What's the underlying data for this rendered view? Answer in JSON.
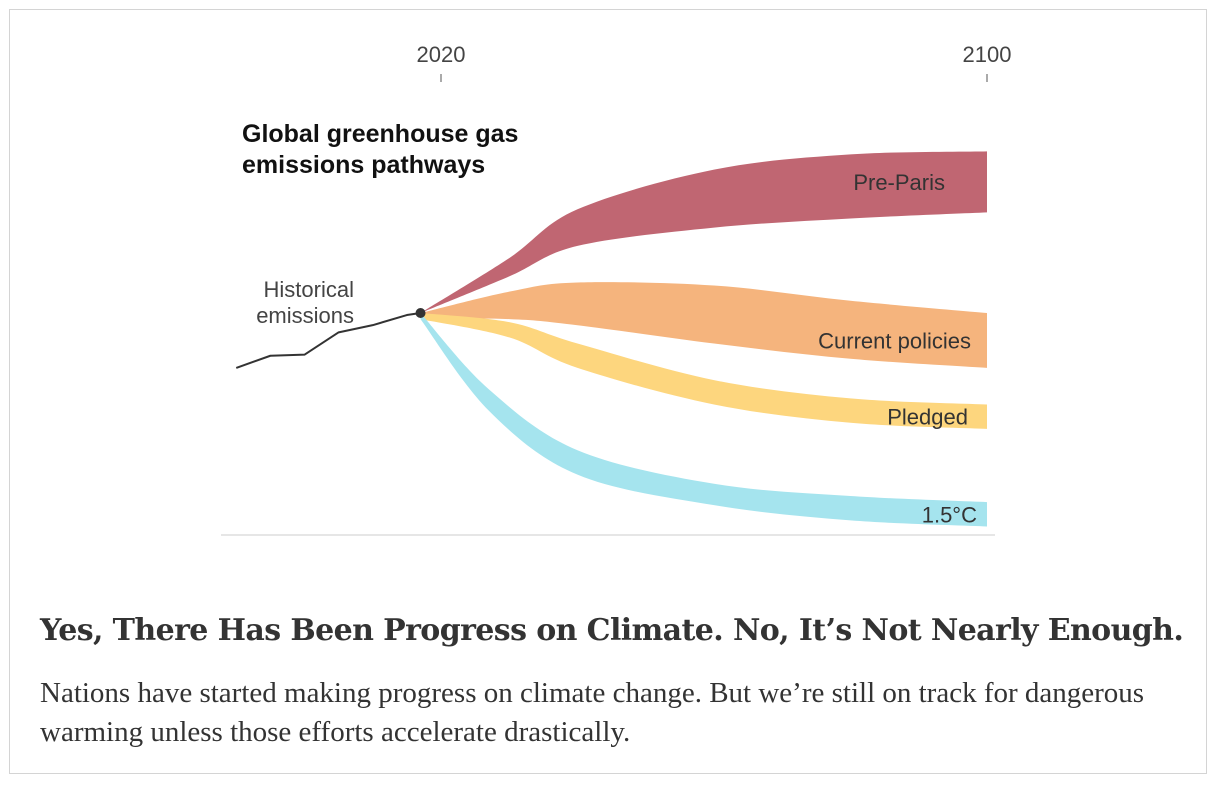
{
  "chart_data": {
    "type": "area",
    "title": "Global greenhouse gas emissions pathways",
    "x_ticks": [
      "2020",
      "2100"
    ],
    "annotations": {
      "historical_label": "Historical emissions"
    },
    "series": [
      {
        "name": "Pre-Paris",
        "color": "#c06672",
        "upper": [
          [
            2017,
            0
          ],
          [
            2030,
            18
          ],
          [
            2040,
            34
          ],
          [
            2060,
            47
          ],
          [
            2080,
            52
          ],
          [
            2100,
            53
          ]
        ],
        "lower": [
          [
            2017,
            0
          ],
          [
            2030,
            12
          ],
          [
            2040,
            22
          ],
          [
            2060,
            28
          ],
          [
            2080,
            31
          ],
          [
            2100,
            33
          ]
        ]
      },
      {
        "name": "Current policies",
        "color": "#f5b47d",
        "upper": [
          [
            2017,
            0
          ],
          [
            2030,
            7
          ],
          [
            2040,
            10
          ],
          [
            2060,
            9
          ],
          [
            2080,
            4
          ],
          [
            2100,
            0
          ]
        ],
        "lower": [
          [
            2017,
            -2
          ],
          [
            2030,
            -2
          ],
          [
            2040,
            -4
          ],
          [
            2060,
            -10
          ],
          [
            2080,
            -15
          ],
          [
            2100,
            -18
          ]
        ]
      },
      {
        "name": "Pledged",
        "color": "#fdd67e",
        "upper": [
          [
            2017,
            0
          ],
          [
            2030,
            -3
          ],
          [
            2040,
            -10
          ],
          [
            2060,
            -22
          ],
          [
            2080,
            -28
          ],
          [
            2100,
            -30
          ]
        ],
        "lower": [
          [
            2017,
            -2
          ],
          [
            2030,
            -8
          ],
          [
            2040,
            -18
          ],
          [
            2060,
            -30
          ],
          [
            2080,
            -36
          ],
          [
            2100,
            -38
          ]
        ]
      },
      {
        "name": "1.5°C",
        "color": "#a5e4ee",
        "upper": [
          [
            2017,
            0
          ],
          [
            2027,
            -25
          ],
          [
            2040,
            -45
          ],
          [
            2060,
            -56
          ],
          [
            2080,
            -60
          ],
          [
            2100,
            -62
          ]
        ],
        "lower": [
          [
            2017,
            -2
          ],
          [
            2027,
            -32
          ],
          [
            2040,
            -53
          ],
          [
            2060,
            -63
          ],
          [
            2080,
            -68
          ],
          [
            2100,
            -70
          ]
        ]
      }
    ],
    "historical": [
      [
        1990,
        -18
      ],
      [
        1995,
        -15
      ],
      [
        2000,
        -13
      ],
      [
        2005,
        -7
      ],
      [
        2010,
        -3
      ],
      [
        2015,
        -1
      ],
      [
        2017,
        0
      ]
    ]
  },
  "headline": "Yes, There Has Been Progress on Climate. No, It’s Not Nearly Enough.",
  "summary": "Nations have started making progress on climate change. But we’re still on track for dangerous warming unless those efforts accelerate drastically."
}
